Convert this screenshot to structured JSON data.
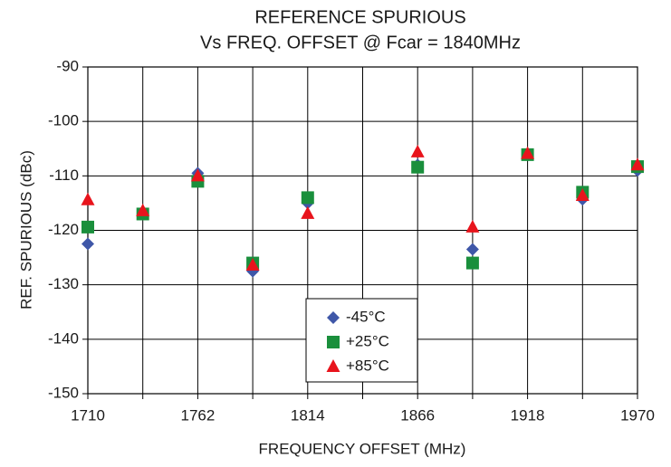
{
  "chart_data": {
    "type": "scatter",
    "title": "REFERENCE SPURIOUS",
    "subtitle": "Vs FREQ. OFFSET @ Fcar = 1840MHz",
    "x_label": "FREQUENCY OFFSET (MHz)",
    "y_label": "REF. SPURIOUS (dBc)",
    "x": [
      1710,
      1736,
      1762,
      1788,
      1814,
      1866,
      1892,
      1918,
      1944,
      1970
    ],
    "series": [
      {
        "name": "-45°C",
        "color": "#3f57a8",
        "marker": "diamond",
        "values": [
          -122.5,
          -117,
          -109.5,
          -127.5,
          -115,
          -108,
          -123.5,
          -106,
          -114.3,
          -109
        ]
      },
      {
        "name": "+25°C",
        "color": "#1a8f3c",
        "marker": "square",
        "values": [
          -119.4,
          -117,
          -111,
          -126,
          -114,
          -108.4,
          -126,
          -106.1,
          -113,
          -108.3
        ]
      },
      {
        "name": "+85°C",
        "color": "#e8141c",
        "marker": "triangle",
        "values": [
          -114.4,
          -116.4,
          -110,
          -126.4,
          -116.9,
          -105.6,
          -119.4,
          -105.9,
          -113.6,
          -108
        ]
      }
    ],
    "xlim": [
      1710,
      1970
    ],
    "xticks": [
      1710,
      1762,
      1814,
      1866,
      1918,
      1970
    ],
    "x_minor_gridlines": [
      1736,
      1788,
      1840,
      1892,
      1944
    ],
    "ylim": [
      -150,
      -90
    ],
    "yticks": [
      -150,
      -140,
      -130,
      -120,
      -110,
      -100,
      -90
    ],
    "grid": true
  }
}
